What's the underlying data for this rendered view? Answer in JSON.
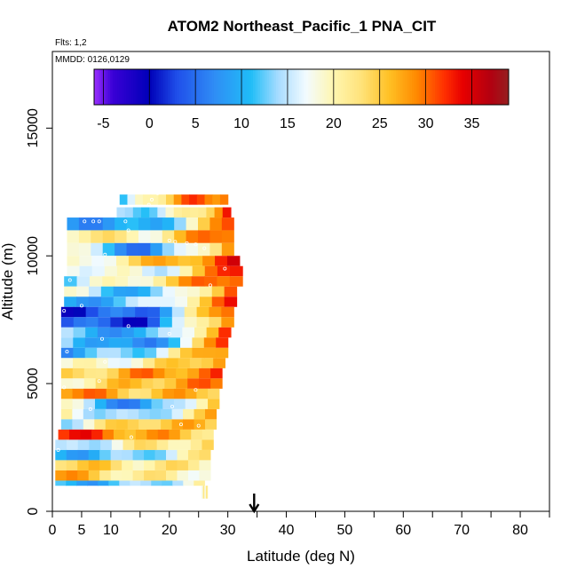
{
  "chart_data": {
    "type": "heatmap",
    "title": "ATOM2 Northeast_Pacific_1 PNA_CIT",
    "flights_label": "Flts: 1,2",
    "dates_label": "MMDD: 0126,0129",
    "xlabel": "Latitude (deg N)",
    "ylabel": "Altitude (m)",
    "xlim": [
      0,
      85
    ],
    "ylim": [
      0,
      18000
    ],
    "x_major_ticks": [
      0,
      10,
      20,
      30,
      40,
      50,
      60,
      70,
      80
    ],
    "x_minor_ticks": [
      5,
      15,
      25,
      35,
      45,
      55,
      65,
      75,
      85
    ],
    "x_tick_labels": [
      "0",
      "5",
      "10",
      "20",
      "30",
      "40",
      "50",
      "60",
      "70",
      "80"
    ],
    "x_tick_label_values": [
      0,
      5,
      10,
      20,
      30,
      40,
      50,
      60,
      70,
      80
    ],
    "y_ticks": [
      0,
      5000,
      10000,
      15000
    ],
    "y_tick_labels": [
      "0",
      "5000",
      "10000",
      "15000"
    ],
    "arrow_latitude": 34.5,
    "colorbar": {
      "min": -6,
      "max": 39,
      "ticks": [
        -5,
        0,
        5,
        10,
        15,
        20,
        25,
        30,
        35
      ],
      "tick_labels": [
        "-5",
        "0",
        "5",
        "10",
        "15",
        "20",
        "25",
        "30",
        "35"
      ],
      "stops": [
        {
          "v": -6,
          "color": "#9b30ff"
        },
        {
          "v": -4,
          "color": "#3a00d6"
        },
        {
          "v": 0,
          "color": "#0000b8"
        },
        {
          "v": 3,
          "color": "#1f4fea"
        },
        {
          "v": 7,
          "color": "#2f8cf5"
        },
        {
          "v": 11,
          "color": "#1fbdf7"
        },
        {
          "v": 14,
          "color": "#a8dcff"
        },
        {
          "v": 17,
          "color": "#f2fbff"
        },
        {
          "v": 20,
          "color": "#fff6b0"
        },
        {
          "v": 23,
          "color": "#ffe27a"
        },
        {
          "v": 26,
          "color": "#ffc125"
        },
        {
          "v": 29,
          "color": "#ff8a00"
        },
        {
          "v": 32,
          "color": "#ff3000"
        },
        {
          "v": 34,
          "color": "#e80000"
        },
        {
          "v": 37,
          "color": "#b30010"
        },
        {
          "v": 39,
          "color": "#952020"
        }
      ]
    },
    "bands": [
      {
        "alt0": 12000,
        "alt1": 12400,
        "lat0": 11.5,
        "lat1": 30.0,
        "v0": 10,
        "v1": 32,
        "mid": 28
      },
      {
        "alt0": 11500,
        "alt1": 11900,
        "lat0": 11.0,
        "lat1": 30.5,
        "v0": 11,
        "v1": 32,
        "mid": 17
      },
      {
        "alt0": 11000,
        "alt1": 11500,
        "lat0": 2.5,
        "lat1": 31.0,
        "v0": 9,
        "v1": 31,
        "mid": 8
      },
      {
        "alt0": 10500,
        "alt1": 11000,
        "lat0": 2.5,
        "lat1": 31.0,
        "v0": 22,
        "v1": 33,
        "mid": 20
      },
      {
        "alt0": 10000,
        "alt1": 10500,
        "lat0": 2.5,
        "lat1": 31.0,
        "v0": 18,
        "v1": 31,
        "mid": 5
      },
      {
        "alt0": 9600,
        "alt1": 10000,
        "lat0": 2.5,
        "lat1": 32.0,
        "v0": 16,
        "v1": 33,
        "mid": 25
      },
      {
        "alt0": 9200,
        "alt1": 9600,
        "lat0": 2.5,
        "lat1": 32.5,
        "v0": 20,
        "v1": 34,
        "mid": 15
      },
      {
        "alt0": 8800,
        "alt1": 9200,
        "lat0": 2.0,
        "lat1": 32.5,
        "v0": 13,
        "v1": 34,
        "mid": 22
      },
      {
        "alt0": 8400,
        "alt1": 8800,
        "lat0": 2.0,
        "lat1": 31.5,
        "v0": 17,
        "v1": 32,
        "mid": 9
      },
      {
        "alt0": 8000,
        "alt1": 8400,
        "lat0": 2.0,
        "lat1": 31.5,
        "v0": 8,
        "v1": 32,
        "mid": 14
      },
      {
        "alt0": 7600,
        "alt1": 8000,
        "lat0": 1.5,
        "lat1": 31.0,
        "v0": 2,
        "v1": 33,
        "mid": 5
      },
      {
        "alt0": 7200,
        "alt1": 7600,
        "lat0": 1.5,
        "lat1": 31.0,
        "v0": 4,
        "v1": 33,
        "mid": 2
      },
      {
        "alt0": 6800,
        "alt1": 7200,
        "lat0": 1.5,
        "lat1": 30.5,
        "v0": 12,
        "v1": 32,
        "mid": 8
      },
      {
        "alt0": 6400,
        "alt1": 6800,
        "lat0": 1.5,
        "lat1": 30.0,
        "v0": 15,
        "v1": 32,
        "mid": 4
      },
      {
        "alt0": 6000,
        "alt1": 6400,
        "lat0": 1.5,
        "lat1": 30.0,
        "v0": 9,
        "v1": 31,
        "mid": 14
      },
      {
        "alt0": 5600,
        "alt1": 6000,
        "lat0": 1.5,
        "lat1": 29.5,
        "v0": 17,
        "v1": 30,
        "mid": 20
      },
      {
        "alt0": 5200,
        "alt1": 5600,
        "lat0": 1.5,
        "lat1": 29.0,
        "v0": 22,
        "v1": 30,
        "mid": 28
      },
      {
        "alt0": 4800,
        "alt1": 5200,
        "lat0": 1.5,
        "lat1": 29.0,
        "v0": 20,
        "v1": 29,
        "mid": 26
      },
      {
        "alt0": 4400,
        "alt1": 4800,
        "lat0": 1.5,
        "lat1": 28.5,
        "v0": 30,
        "v1": 27,
        "mid": 25
      },
      {
        "alt0": 4000,
        "alt1": 4400,
        "lat0": 1.5,
        "lat1": 28.5,
        "v0": 18,
        "v1": 27,
        "mid": 5
      },
      {
        "alt0": 3600,
        "alt1": 4000,
        "lat0": 1.5,
        "lat1": 28.0,
        "v0": 20,
        "v1": 26,
        "mid": 11
      },
      {
        "alt0": 3200,
        "alt1": 3600,
        "lat0": 1.5,
        "lat1": 28.0,
        "v0": 15,
        "v1": 25,
        "mid": 26
      },
      {
        "alt0": 2800,
        "alt1": 3200,
        "lat0": 1.0,
        "lat1": 27.5,
        "v0": 33,
        "v1": 24,
        "mid": 28
      },
      {
        "alt0": 2400,
        "alt1": 2800,
        "lat0": 0.5,
        "lat1": 27.5,
        "v0": 11,
        "v1": 23,
        "mid": 21
      },
      {
        "alt0": 2000,
        "alt1": 2400,
        "lat0": 0.5,
        "lat1": 27.0,
        "v0": 10,
        "v1": 22,
        "mid": 12
      },
      {
        "alt0": 1600,
        "alt1": 2000,
        "lat0": 0.5,
        "lat1": 27.0,
        "v0": 26,
        "v1": 21,
        "mid": 22
      },
      {
        "alt0": 1200,
        "alt1": 1600,
        "lat0": 0.5,
        "lat1": 27.0,
        "v0": 28,
        "v1": 20,
        "mid": 21
      },
      {
        "alt0": 1000,
        "alt1": 1200,
        "lat0": 0.5,
        "lat1": 26.0,
        "v0": 9,
        "v1": 19,
        "mid": 12
      },
      {
        "alt0": 500,
        "alt1": 1000,
        "lat0": 25.5,
        "lat1": 26.5,
        "v0": 20,
        "v1": 20,
        "mid": 20
      }
    ],
    "points": [
      {
        "lat": 18.0,
        "alt": 12450
      },
      {
        "lat": 17.0,
        "alt": 12200
      },
      {
        "lat": 16.5,
        "alt": 12000
      },
      {
        "lat": 5.5,
        "alt": 11350
      },
      {
        "lat": 7.0,
        "alt": 11350
      },
      {
        "lat": 8.0,
        "alt": 11350
      },
      {
        "lat": 12.5,
        "alt": 11350
      },
      {
        "lat": 13.0,
        "alt": 11000
      },
      {
        "lat": 20.0,
        "alt": 10600
      },
      {
        "lat": 21.0,
        "alt": 10550
      },
      {
        "lat": 23.0,
        "alt": 10500
      },
      {
        "lat": 24.5,
        "alt": 10450
      },
      {
        "lat": 26.0,
        "alt": 10300
      },
      {
        "lat": 9.0,
        "alt": 10050
      },
      {
        "lat": 29.5,
        "alt": 9500
      },
      {
        "lat": 27.0,
        "alt": 8850
      },
      {
        "lat": 3.0,
        "alt": 9050
      },
      {
        "lat": 5.0,
        "alt": 8050
      },
      {
        "lat": 2.0,
        "alt": 7850
      },
      {
        "lat": 13.0,
        "alt": 7250
      },
      {
        "lat": 20.0,
        "alt": 6950
      },
      {
        "lat": 8.5,
        "alt": 6750
      },
      {
        "lat": 2.5,
        "alt": 6250
      },
      {
        "lat": 9.0,
        "alt": 5850
      },
      {
        "lat": 8.0,
        "alt": 5100
      },
      {
        "lat": 24.5,
        "alt": 4750
      },
      {
        "lat": 2.0,
        "alt": 4850
      },
      {
        "lat": 20.5,
        "alt": 4100
      },
      {
        "lat": 6.5,
        "alt": 4000
      },
      {
        "lat": 22.0,
        "alt": 3400
      },
      {
        "lat": 25.0,
        "alt": 3350
      },
      {
        "lat": 13.5,
        "alt": 2900
      },
      {
        "lat": 1.0,
        "alt": 2400
      }
    ]
  }
}
